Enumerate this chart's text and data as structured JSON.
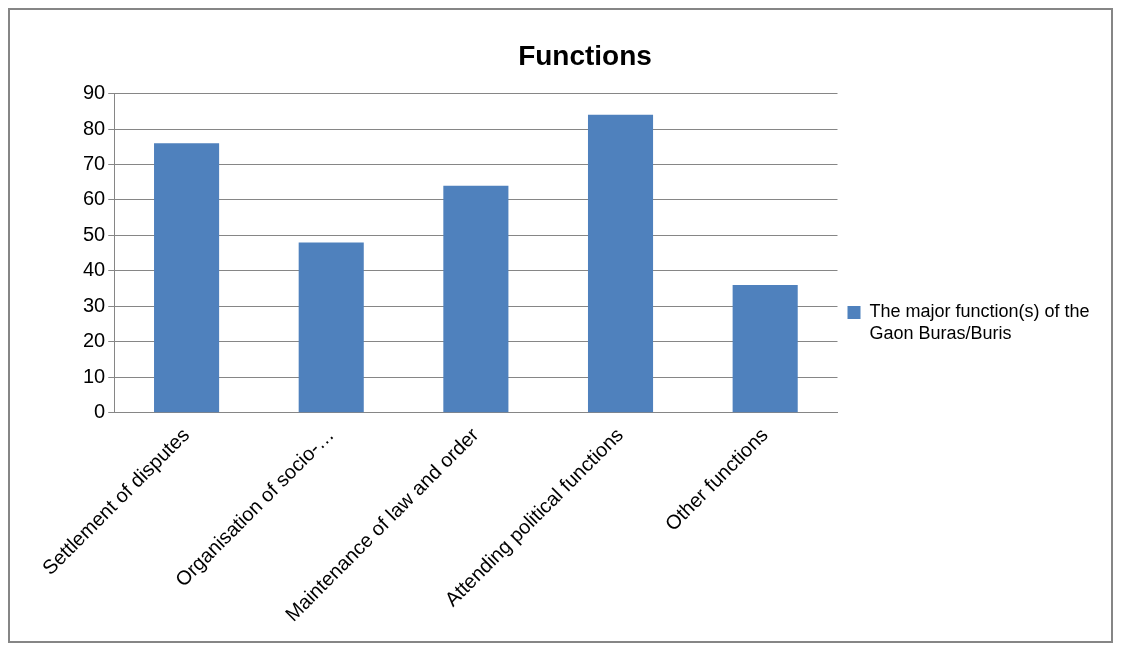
{
  "chart_data": {
    "type": "bar",
    "title": "Functions",
    "categories": [
      "Settlement of disputes",
      "Organisation of socio-…",
      "Maintenance of law and order",
      "Attending political functions",
      "Other functions"
    ],
    "series": [
      {
        "name": "The major function(s) of the Gaon Buras/Buris",
        "color": "#4f81bd",
        "values": [
          76,
          48,
          64,
          84,
          36
        ]
      }
    ],
    "ylim": [
      0,
      90
    ],
    "yticks": [
      0,
      10,
      20,
      30,
      40,
      50,
      60,
      70,
      80,
      90
    ],
    "grid": "y",
    "legend": "right"
  }
}
